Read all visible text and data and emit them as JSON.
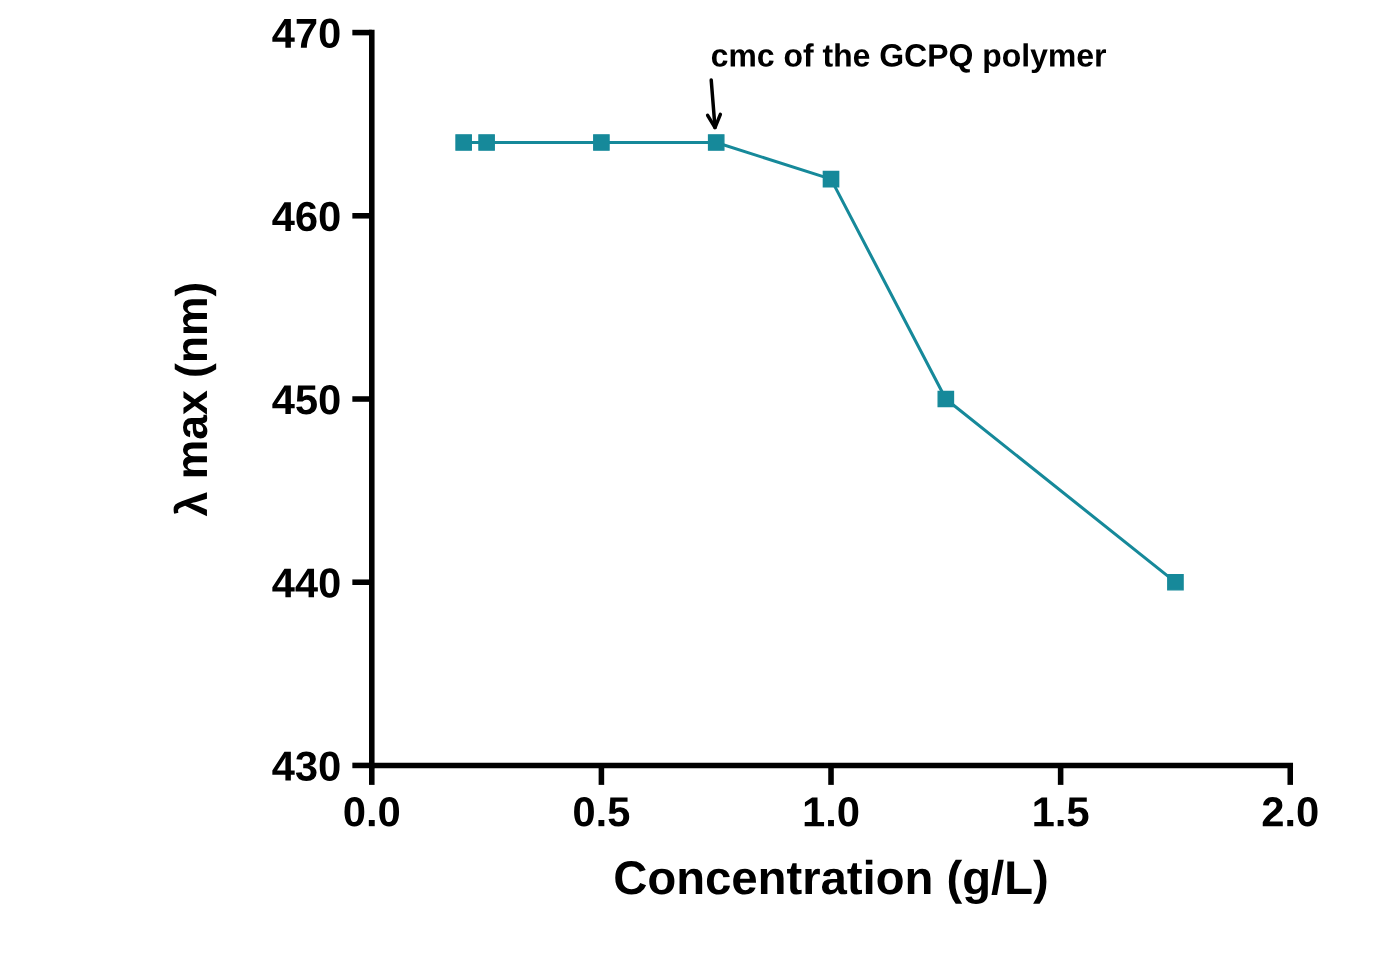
{
  "chart_data": {
    "type": "line",
    "xlabel": "Concentration (g/L)",
    "ylabel": "λ max (nm)",
    "x": [
      0.2,
      0.25,
      0.5,
      0.75,
      1.0,
      1.25,
      1.75
    ],
    "series": [
      {
        "color": "#16899a",
        "values": [
          464,
          464,
          464,
          464,
          462,
          450,
          440
        ]
      }
    ],
    "xlim": [
      0,
      2
    ],
    "xticks": [
      {
        "value": 0,
        "label": "0.0"
      },
      0.5,
      {
        "value": 1,
        "label": "1.0"
      },
      1.5,
      {
        "value": 2,
        "label": "2.0"
      }
    ],
    "ylim": [
      430,
      470
    ],
    "yticks": [
      430,
      440,
      450,
      460,
      470
    ],
    "marker": "square",
    "line_style": "solid",
    "grid": false,
    "legend": false,
    "annotations": [
      {
        "text": "cmc of the GCPQ polymer",
        "x": 0.75,
        "y": 464
      }
    ]
  }
}
